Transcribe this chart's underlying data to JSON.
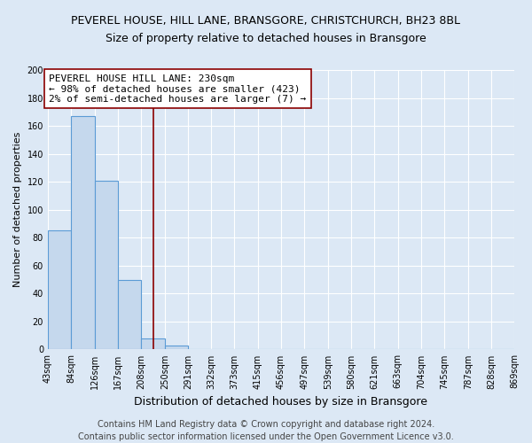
{
  "title": "PEVEREL HOUSE, HILL LANE, BRANSGORE, CHRISTCHURCH, BH23 8BL",
  "subtitle": "Size of property relative to detached houses in Bransgore",
  "xlabel": "Distribution of detached houses by size in Bransgore",
  "ylabel": "Number of detached properties",
  "bar_heights": [
    85,
    167,
    121,
    50,
    8,
    3,
    0,
    0,
    0,
    0,
    0,
    0,
    0,
    0,
    0,
    0,
    0,
    0,
    0,
    0
  ],
  "bin_edges": [
    43,
    84,
    126,
    167,
    208,
    250,
    291,
    332,
    373,
    415,
    456,
    497,
    539,
    580,
    621,
    663,
    704,
    745,
    787,
    828,
    869
  ],
  "xtick_labels": [
    "43sqm",
    "84sqm",
    "126sqm",
    "167sqm",
    "208sqm",
    "250sqm",
    "291sqm",
    "332sqm",
    "373sqm",
    "415sqm",
    "456sqm",
    "497sqm",
    "539sqm",
    "580sqm",
    "621sqm",
    "663sqm",
    "704sqm",
    "745sqm",
    "787sqm",
    "828sqm",
    "869sqm"
  ],
  "ylim": [
    0,
    200
  ],
  "yticks": [
    0,
    20,
    40,
    60,
    80,
    100,
    120,
    140,
    160,
    180,
    200
  ],
  "bar_color": "#c5d8ed",
  "bar_edge_color": "#5b9bd5",
  "vline_x": 230,
  "vline_color": "#8b0000",
  "annotation_line1": "PEVEREL HOUSE HILL LANE: 230sqm",
  "annotation_line2": "← 98% of detached houses are smaller (423)",
  "annotation_line3": "2% of semi-detached houses are larger (7) →",
  "annotation_box_color": "#ffffff",
  "annotation_box_edge_color": "#8b0000",
  "footer_line1": "Contains HM Land Registry data © Crown copyright and database right 2024.",
  "footer_line2": "Contains public sector information licensed under the Open Government Licence v3.0.",
  "background_color": "#dce8f5",
  "plot_background_color": "#dce8f5",
  "grid_color": "#ffffff",
  "title_fontsize": 9,
  "subtitle_fontsize": 9,
  "xlabel_fontsize": 9,
  "ylabel_fontsize": 8,
  "tick_fontsize": 7,
  "annotation_fontsize": 8,
  "footer_fontsize": 7
}
